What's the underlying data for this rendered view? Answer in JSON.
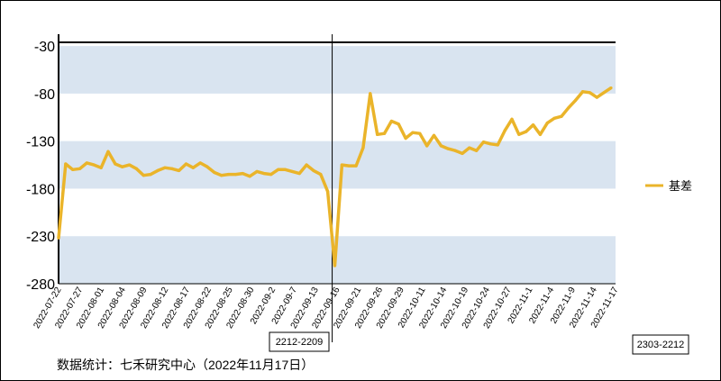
{
  "chart_data": {
    "type": "line",
    "title": "",
    "xlabel": "",
    "ylabel": "",
    "ylim": [
      -280,
      -10
    ],
    "yticks": [
      -30,
      -80,
      -130,
      -180,
      -230,
      -280
    ],
    "bands": [
      [
        -80,
        -30
      ],
      [
        -180,
        -130
      ],
      [
        -280,
        -230
      ]
    ],
    "band_color": "#d9e4f0",
    "line_color": "#eab42a",
    "legend_position": "right",
    "series": [
      {
        "name": "基差",
        "values": [
          -232,
          -154,
          -160,
          -159,
          -153,
          -155,
          -158,
          -141,
          -154,
          -157,
          -155,
          -159,
          -166,
          -165,
          -161,
          -158,
          -159,
          -161,
          -154,
          -158,
          -153,
          -157,
          -163,
          -166,
          -165,
          -165,
          -164,
          -167,
          -162,
          -164,
          -165,
          -160,
          -160,
          -162,
          -164,
          -155,
          -161,
          -165,
          -183,
          -261,
          -155,
          -156,
          -156,
          -137,
          -80,
          -123,
          -122,
          -109,
          -112,
          -127,
          -121,
          -122,
          -135,
          -124,
          -135,
          -138,
          -140,
          -143,
          -137,
          -140,
          -131,
          -133,
          -134,
          -119,
          -107,
          -123,
          -120,
          -113,
          -123,
          -111,
          -106,
          -104,
          -95,
          -87,
          -78,
          -79,
          -84,
          -79,
          -74
        ]
      }
    ],
    "x_labels": [
      "2022-07-22",
      "2022-07-27",
      "2022-08-01",
      "2022-08-04",
      "2022-08-09",
      "2022-08-12",
      "2022-08-17",
      "2022-08-22",
      "2022-08-25",
      "2022-08-30",
      "2022-09-2",
      "2022-09-7",
      "2022-09-13",
      "2022-09-16",
      "2022-09-21",
      "2022-09-26",
      "2022-09-29",
      "2022-10-11",
      "2022-10-14",
      "2022-10-19",
      "2022-10-24",
      "2022-10-27",
      "2022-11-1",
      "2022-11-4",
      "2022-11-9",
      "2022-11-14",
      "2022-11-17"
    ],
    "contracts": [
      "2212-2209",
      "2303-2212"
    ]
  },
  "source_text": "数据统计：七禾研究中心（2022年11月17日）"
}
